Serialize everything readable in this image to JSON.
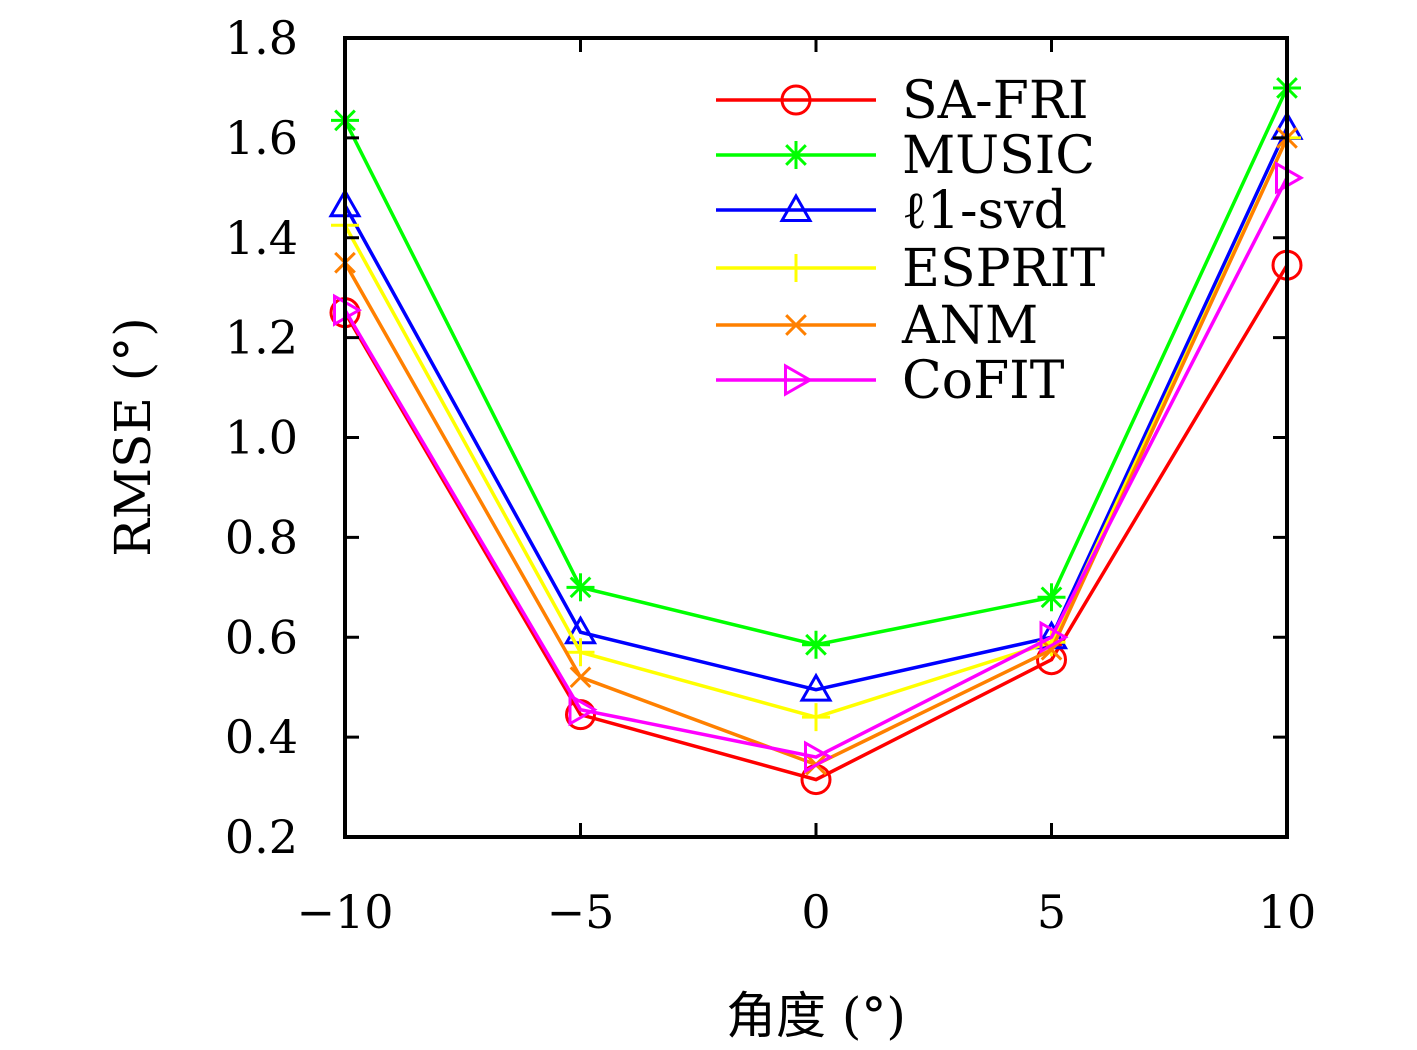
{
  "chart_data": {
    "type": "line",
    "title": "",
    "xlabel": "角度 (°)",
    "ylabel": "RMSE (°)",
    "x": [
      -10,
      -5,
      0,
      5,
      10
    ],
    "xlim": [
      -10,
      10
    ],
    "ylim": [
      0.2,
      1.8
    ],
    "xticks": [
      -10,
      -5,
      0,
      5,
      10
    ],
    "xtick_labels": [
      "−10",
      "−5",
      "0",
      "5",
      "10"
    ],
    "yticks": [
      0.2,
      0.4,
      0.6,
      0.8,
      1.0,
      1.2,
      1.4,
      1.6,
      1.8
    ],
    "ytick_labels": [
      "0.2",
      "0.4",
      "0.6",
      "0.8",
      "1.0",
      "1.2",
      "1.4",
      "1.6",
      "1.8"
    ],
    "grid": false,
    "legend_position": "top-right",
    "series": [
      {
        "name": "SA-FRI",
        "color": "#ff0000",
        "marker": "circle",
        "values": [
          1.25,
          0.445,
          0.315,
          0.555,
          1.345
        ]
      },
      {
        "name": "MUSIC",
        "color": "#00ff00",
        "marker": "asterisk",
        "values": [
          1.635,
          0.7,
          0.585,
          0.68,
          1.7
        ]
      },
      {
        "name": "ℓ1-svd",
        "color": "#0000ff",
        "marker": "triangle-up",
        "values": [
          1.465,
          0.61,
          0.495,
          0.6,
          1.62
        ]
      },
      {
        "name": "ESPRIT",
        "color": "#ffff00",
        "marker": "plus",
        "values": [
          1.425,
          0.57,
          0.44,
          0.59,
          1.6
        ]
      },
      {
        "name": "ANM",
        "color": "#ff8000",
        "marker": "cross",
        "values": [
          1.35,
          0.52,
          0.345,
          0.575,
          1.6
        ]
      },
      {
        "name": "CoFIT",
        "color": "#ff00ff",
        "marker": "triangle-right",
        "values": [
          1.255,
          0.455,
          0.36,
          0.6,
          1.52
        ]
      }
    ]
  }
}
